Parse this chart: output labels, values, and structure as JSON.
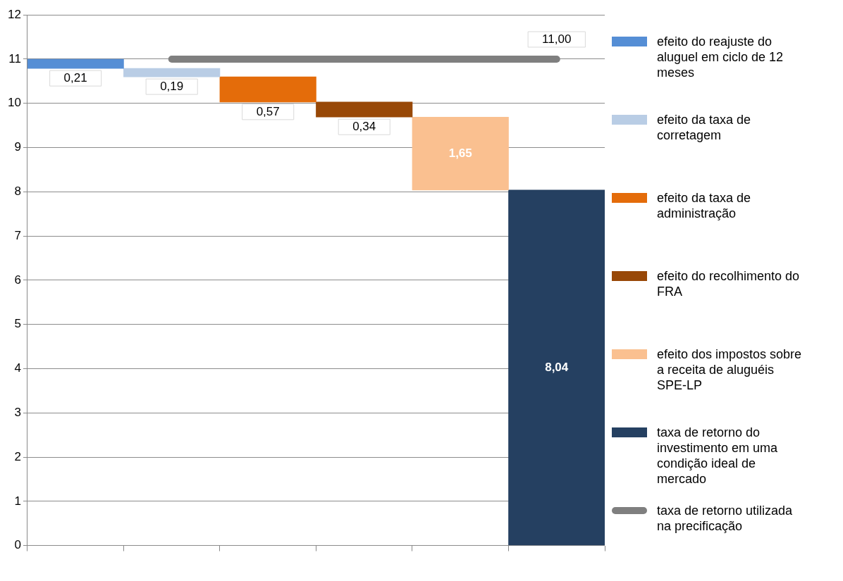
{
  "chart_data": {
    "type": "bar",
    "categories": [
      null,
      null,
      null,
      null,
      null,
      null
    ],
    "series": [
      {
        "name": "efeito do reajuste do aluguel em ciclo de 12 meses",
        "color": "#558ed5",
        "base": [
          10.79,
          null,
          null,
          null,
          null,
          null
        ],
        "values": [
          0.21,
          null,
          null,
          null,
          null,
          null
        ],
        "value_labels": [
          "0,21",
          null,
          null,
          null,
          null,
          null
        ]
      },
      {
        "name": "efeito da taxa de corretagem",
        "color": "#b9cde5",
        "base": [
          null,
          10.6,
          null,
          null,
          null,
          null
        ],
        "values": [
          null,
          0.19,
          null,
          null,
          null,
          null
        ],
        "value_labels": [
          null,
          "0,19",
          null,
          null,
          null,
          null
        ]
      },
      {
        "name": "efeito da taxa de administração",
        "color": "#e46c0a",
        "base": [
          null,
          null,
          10.03,
          null,
          null,
          null
        ],
        "values": [
          null,
          null,
          0.57,
          null,
          null,
          null
        ],
        "value_labels": [
          null,
          null,
          "0,57",
          null,
          null,
          null
        ]
      },
      {
        "name": "efeito do recolhimento do FRA",
        "color": "#984807",
        "base": [
          null,
          null,
          null,
          9.69,
          null,
          null
        ],
        "values": [
          null,
          null,
          null,
          0.34,
          null,
          null
        ],
        "value_labels": [
          null,
          null,
          null,
          "0,34",
          null,
          null
        ]
      },
      {
        "name": "efeito dos impostos sobre a receita de aluguéis SPE-LP",
        "color": "#fac090",
        "base": [
          null,
          null,
          null,
          null,
          8.04,
          null
        ],
        "values": [
          null,
          null,
          null,
          null,
          1.65,
          null
        ],
        "value_labels": [
          null,
          null,
          null,
          null,
          "1,65",
          null
        ]
      },
      {
        "name": "taxa de retorno do investimento em uma condição ideal  de mercado",
        "color": "#254061",
        "base": [
          null,
          null,
          null,
          null,
          null,
          0
        ],
        "values": [
          null,
          null,
          null,
          null,
          null,
          8.04
        ],
        "value_labels": [
          null,
          null,
          null,
          null,
          null,
          "8,04"
        ]
      },
      {
        "name": "taxa de retorno utilizada na precificação",
        "type": "line",
        "color": "#7f7f7f",
        "values": [
          null,
          11,
          11,
          11,
          11,
          11
        ],
        "value_labels": [
          null,
          null,
          null,
          null,
          null,
          "11,00"
        ]
      }
    ],
    "ylim": [
      0,
      12
    ],
    "yticks": [
      0,
      1,
      2,
      3,
      4,
      5,
      6,
      7,
      8,
      9,
      10,
      11,
      12
    ],
    "grid": "y",
    "legend": "right",
    "marker": "none"
  }
}
